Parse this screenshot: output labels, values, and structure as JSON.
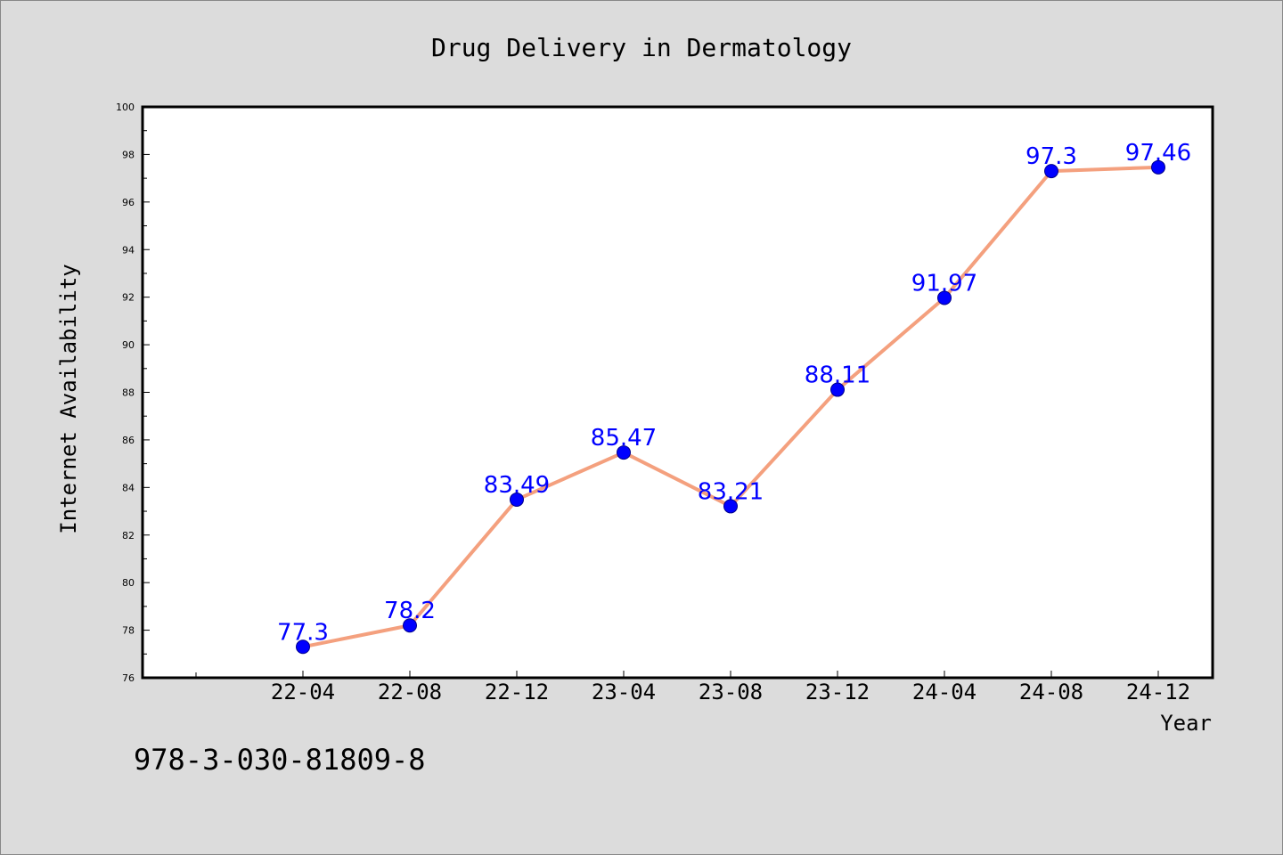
{
  "chart_data": {
    "type": "line",
    "title": "Drug Delivery in Dermatology",
    "xlabel": "Year",
    "ylabel": "Internet Availability",
    "categories": [
      "22-04",
      "22-08",
      "22-12",
      "23-04",
      "23-08",
      "23-12",
      "24-04",
      "24-08",
      "24-12"
    ],
    "series": [
      {
        "values": [
          77.3,
          78.2,
          83.49,
          85.47,
          83.21,
          88.11,
          91.97,
          97.3,
          97.46
        ],
        "labels": [
          "77.3",
          "78.2",
          "83.49",
          "85.47",
          "83.21",
          "88.11",
          "91.97",
          "97.3",
          "97.46"
        ],
        "line_color": "#f4a07e",
        "marker_color": "#0000ff",
        "label_color": "#0000ff"
      }
    ],
    "ylim": [
      76,
      100
    ],
    "yticks": [
      "76",
      "78",
      "80",
      "82",
      "84",
      "86",
      "88",
      "90",
      "92",
      "94",
      "96",
      "98",
      "100"
    ],
    "grid": false,
    "annotation": "978-3-030-81809-8"
  },
  "colors": {
    "background": "#dcdcdc",
    "plot_background": "#ffffff",
    "axis": "#000000"
  }
}
